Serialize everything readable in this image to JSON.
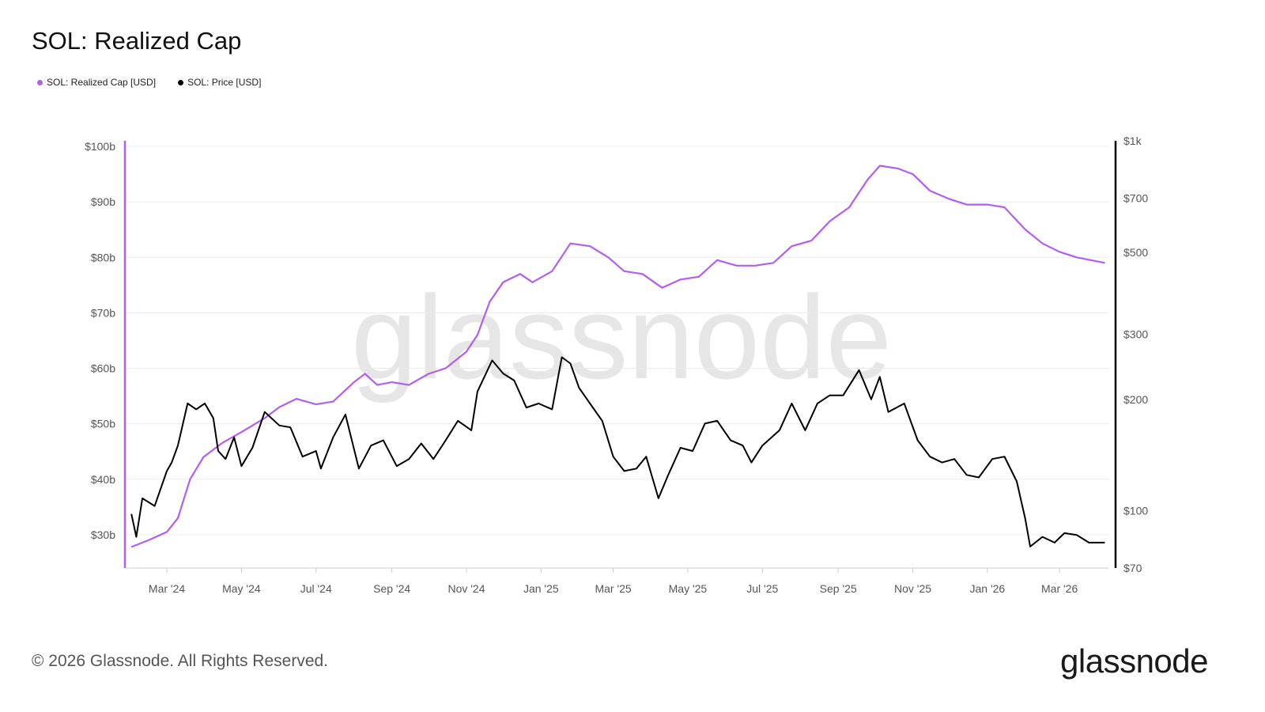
{
  "title": "SOL: Realized Cap",
  "legend": [
    {
      "label": "SOL: Realized Cap [USD]",
      "color": "#b25ef0"
    },
    {
      "label": "SOL: Price [USD]",
      "color": "#000000"
    }
  ],
  "watermark": "glassnode",
  "footer": "© 2026 Glassnode. All Rights Reserved.",
  "brand": "glassnode",
  "chart_data": {
    "type": "line",
    "grid": true,
    "x_ticks": [
      {
        "label": "Mar '24",
        "date": "2024-03-01"
      },
      {
        "label": "May '24",
        "date": "2024-05-01"
      },
      {
        "label": "Jul '24",
        "date": "2024-07-01"
      },
      {
        "label": "Sep '24",
        "date": "2024-09-01"
      },
      {
        "label": "Nov '24",
        "date": "2024-11-01"
      },
      {
        "label": "Jan '25",
        "date": "2025-01-01"
      },
      {
        "label": "Mar '25",
        "date": "2025-03-01"
      },
      {
        "label": "May '25",
        "date": "2025-05-01"
      },
      {
        "label": "Jul '25",
        "date": "2025-07-01"
      },
      {
        "label": "Sep '25",
        "date": "2025-09-01"
      },
      {
        "label": "Nov '25",
        "date": "2025-11-01"
      },
      {
        "label": "Jan '26",
        "date": "2026-01-01"
      },
      {
        "label": "Mar '26",
        "date": "2026-03-01"
      }
    ],
    "xlim": [
      "2024-01-28",
      "2026-04-10"
    ],
    "y_left": {
      "scale": "linear",
      "range": [
        24,
        100
      ],
      "ticks": [
        {
          "label": "$100b",
          "value": 100
        },
        {
          "label": "$90b",
          "value": 90
        },
        {
          "label": "$80b",
          "value": 80
        },
        {
          "label": "$70b",
          "value": 70
        },
        {
          "label": "$60b",
          "value": 60
        },
        {
          "label": "$50b",
          "value": 50
        },
        {
          "label": "$40b",
          "value": 40
        },
        {
          "label": "$30b",
          "value": 30
        }
      ]
    },
    "y_right": {
      "scale": "log",
      "range": [
        70,
        1000
      ],
      "ticks": [
        {
          "label": "$1k",
          "value": 1000
        },
        {
          "label": "$700",
          "value": 700
        },
        {
          "label": "$500",
          "value": 500
        },
        {
          "label": "$300",
          "value": 300
        },
        {
          "label": "$200",
          "value": 200
        },
        {
          "label": "$100",
          "value": 100
        },
        {
          "label": "$70",
          "value": 70
        }
      ]
    },
    "series": [
      {
        "name": "SOL: Realized Cap [USD]",
        "axis": "left",
        "color": "#b25ef0",
        "unit": "billion USD",
        "points": [
          [
            "2024-02-01",
            27.8
          ],
          [
            "2024-02-15",
            29.0
          ],
          [
            "2024-03-01",
            30.5
          ],
          [
            "2024-03-10",
            33.0
          ],
          [
            "2024-03-20",
            40.0
          ],
          [
            "2024-03-31",
            44.0
          ],
          [
            "2024-04-15",
            46.5
          ],
          [
            "2024-05-01",
            48.5
          ],
          [
            "2024-05-20",
            51.0
          ],
          [
            "2024-06-01",
            53.0
          ],
          [
            "2024-06-15",
            54.5
          ],
          [
            "2024-07-01",
            53.5
          ],
          [
            "2024-07-15",
            54.0
          ],
          [
            "2024-08-01",
            57.5
          ],
          [
            "2024-08-10",
            59.0
          ],
          [
            "2024-08-20",
            57.0
          ],
          [
            "2024-09-01",
            57.5
          ],
          [
            "2024-09-15",
            57.0
          ],
          [
            "2024-10-01",
            59.0
          ],
          [
            "2024-10-15",
            60.0
          ],
          [
            "2024-11-01",
            63.0
          ],
          [
            "2024-11-10",
            66.0
          ],
          [
            "2024-11-20",
            72.0
          ],
          [
            "2024-12-01",
            75.5
          ],
          [
            "2024-12-15",
            77.0
          ],
          [
            "2024-12-25",
            75.5
          ],
          [
            "2025-01-10",
            77.5
          ],
          [
            "2025-01-25",
            82.5
          ],
          [
            "2025-02-10",
            82.0
          ],
          [
            "2025-02-25",
            80.0
          ],
          [
            "2025-03-10",
            77.5
          ],
          [
            "2025-03-25",
            77.0
          ],
          [
            "2025-04-10",
            74.5
          ],
          [
            "2025-04-25",
            76.0
          ],
          [
            "2025-05-10",
            76.5
          ],
          [
            "2025-05-25",
            79.5
          ],
          [
            "2025-06-10",
            78.5
          ],
          [
            "2025-06-25",
            78.5
          ],
          [
            "2025-07-10",
            79.0
          ],
          [
            "2025-07-25",
            82.0
          ],
          [
            "2025-08-10",
            83.0
          ],
          [
            "2025-08-25",
            86.5
          ],
          [
            "2025-09-10",
            89.0
          ],
          [
            "2025-09-25",
            94.0
          ],
          [
            "2025-10-05",
            96.5
          ],
          [
            "2025-10-20",
            96.0
          ],
          [
            "2025-11-01",
            95.0
          ],
          [
            "2025-11-15",
            92.0
          ],
          [
            "2025-12-01",
            90.5
          ],
          [
            "2025-12-15",
            89.5
          ],
          [
            "2026-01-01",
            89.5
          ],
          [
            "2026-01-15",
            89.0
          ],
          [
            "2026-02-01",
            85.0
          ],
          [
            "2026-02-15",
            82.5
          ],
          [
            "2026-03-01",
            81.0
          ],
          [
            "2026-03-15",
            80.0
          ],
          [
            "2026-04-07",
            79.0
          ]
        ]
      },
      {
        "name": "SOL: Price [USD]",
        "axis": "right",
        "color": "#000000",
        "unit": "USD",
        "points": [
          [
            "2024-02-01",
            98
          ],
          [
            "2024-02-05",
            85
          ],
          [
            "2024-02-10",
            108
          ],
          [
            "2024-02-20",
            103
          ],
          [
            "2024-03-01",
            128
          ],
          [
            "2024-03-05",
            135
          ],
          [
            "2024-03-10",
            150
          ],
          [
            "2024-03-18",
            195
          ],
          [
            "2024-03-25",
            188
          ],
          [
            "2024-04-01",
            195
          ],
          [
            "2024-04-08",
            178
          ],
          [
            "2024-04-12",
            145
          ],
          [
            "2024-04-18",
            138
          ],
          [
            "2024-04-25",
            158
          ],
          [
            "2024-05-01",
            132
          ],
          [
            "2024-05-10",
            148
          ],
          [
            "2024-05-20",
            185
          ],
          [
            "2024-06-01",
            170
          ],
          [
            "2024-06-10",
            168
          ],
          [
            "2024-06-20",
            140
          ],
          [
            "2024-07-01",
            145
          ],
          [
            "2024-07-05",
            130
          ],
          [
            "2024-07-15",
            158
          ],
          [
            "2024-07-25",
            182
          ],
          [
            "2024-08-05",
            130
          ],
          [
            "2024-08-15",
            150
          ],
          [
            "2024-08-25",
            155
          ],
          [
            "2024-09-05",
            132
          ],
          [
            "2024-09-15",
            138
          ],
          [
            "2024-09-25",
            152
          ],
          [
            "2024-10-05",
            138
          ],
          [
            "2024-10-15",
            155
          ],
          [
            "2024-10-25",
            175
          ],
          [
            "2024-11-05",
            165
          ],
          [
            "2024-11-10",
            210
          ],
          [
            "2024-11-22",
            255
          ],
          [
            "2024-12-01",
            235
          ],
          [
            "2024-12-10",
            225
          ],
          [
            "2024-12-20",
            190
          ],
          [
            "2024-12-30",
            195
          ],
          [
            "2025-01-10",
            188
          ],
          [
            "2025-01-18",
            260
          ],
          [
            "2025-01-25",
            250
          ],
          [
            "2025-02-01",
            215
          ],
          [
            "2025-02-10",
            195
          ],
          [
            "2025-02-20",
            175
          ],
          [
            "2025-03-01",
            140
          ],
          [
            "2025-03-10",
            128
          ],
          [
            "2025-03-20",
            130
          ],
          [
            "2025-03-28",
            140
          ],
          [
            "2025-04-07",
            108
          ],
          [
            "2025-04-15",
            125
          ],
          [
            "2025-04-25",
            148
          ],
          [
            "2025-05-05",
            145
          ],
          [
            "2025-05-15",
            172
          ],
          [
            "2025-05-25",
            175
          ],
          [
            "2025-06-05",
            155
          ],
          [
            "2025-06-15",
            150
          ],
          [
            "2025-06-22",
            135
          ],
          [
            "2025-07-01",
            150
          ],
          [
            "2025-07-15",
            165
          ],
          [
            "2025-07-25",
            195
          ],
          [
            "2025-08-05",
            165
          ],
          [
            "2025-08-15",
            195
          ],
          [
            "2025-08-25",
            205
          ],
          [
            "2025-09-05",
            205
          ],
          [
            "2025-09-18",
            240
          ],
          [
            "2025-09-28",
            200
          ],
          [
            "2025-10-05",
            230
          ],
          [
            "2025-10-12",
            185
          ],
          [
            "2025-10-25",
            195
          ],
          [
            "2025-11-05",
            155
          ],
          [
            "2025-11-15",
            140
          ],
          [
            "2025-11-25",
            135
          ],
          [
            "2025-12-05",
            138
          ],
          [
            "2025-12-15",
            125
          ],
          [
            "2025-12-25",
            123
          ],
          [
            "2026-01-05",
            138
          ],
          [
            "2026-01-15",
            140
          ],
          [
            "2026-01-25",
            120
          ],
          [
            "2026-02-01",
            95
          ],
          [
            "2026-02-05",
            80
          ],
          [
            "2026-02-15",
            85
          ],
          [
            "2026-02-25",
            82
          ],
          [
            "2026-03-05",
            87
          ],
          [
            "2026-03-15",
            86
          ],
          [
            "2026-03-25",
            82
          ],
          [
            "2026-04-07",
            82
          ]
        ]
      }
    ]
  }
}
